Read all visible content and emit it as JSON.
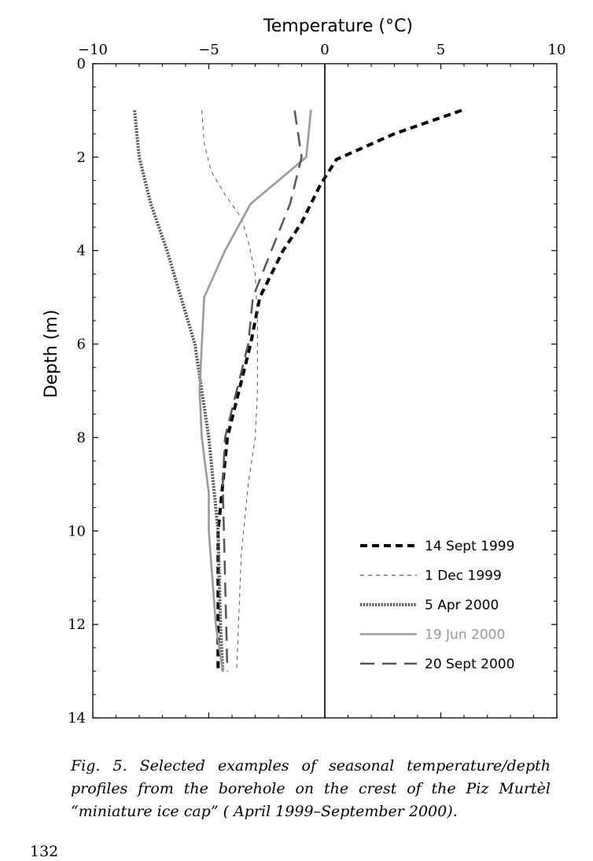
{
  "chart_data": {
    "type": "line",
    "xlabel": "Temperature (°C)",
    "ylabel": "Depth (m)",
    "xlim": [
      -10,
      10
    ],
    "ylim": [
      0,
      14
    ],
    "y_inverted": true,
    "x_axis_position": "top",
    "xticks": [
      "−10",
      "−5",
      "0",
      "5",
      "10"
    ],
    "yticks": [
      "0",
      "2",
      "4",
      "6",
      "8",
      "10",
      "12",
      "14"
    ],
    "zero_line": true,
    "grid": false,
    "legend_position": "bottom-right",
    "series": [
      {
        "name": "14 Sept 1999",
        "color": "#000000",
        "style": "heavy-dashed",
        "x": [
          5.9,
          3.0,
          0.5,
          -0.2,
          -0.6,
          -1.0,
          -1.8,
          -2.8,
          -3.2,
          -3.7,
          -4.2,
          -4.4,
          -4.6,
          -4.6
        ],
        "y": [
          1,
          1.5,
          2.05,
          2.6,
          3.0,
          3.4,
          4.0,
          5.0,
          6.0,
          7.0,
          8.0,
          9.0,
          10.0,
          13.0
        ]
      },
      {
        "name": "1 Dec 1999",
        "color": "#555555",
        "style": "thin-dashed",
        "x": [
          -5.3,
          -5.2,
          -4.9,
          -4.3,
          -3.6,
          -3.3,
          -3.0,
          -2.9,
          -2.9,
          -3.0,
          -3.3,
          -3.6,
          -3.8
        ],
        "y": [
          1,
          1.7,
          2.3,
          2.8,
          3.3,
          3.8,
          4.5,
          5.5,
          7.0,
          8.0,
          9.0,
          10.5,
          13.0
        ]
      },
      {
        "name": "5 Apr 2000",
        "color": "#555555",
        "style": "dotted",
        "x": [
          -8.2,
          -8.0,
          -7.5,
          -6.8,
          -6.2,
          -5.6,
          -5.3,
          -5.0,
          -4.8,
          -4.6,
          -4.5,
          -4.4
        ],
        "y": [
          1,
          2,
          3,
          4,
          5,
          6,
          7,
          8,
          9,
          10,
          12,
          13
        ]
      },
      {
        "name": "19 Jun 2000",
        "color": "#999999",
        "style": "solid",
        "x": [
          -0.6,
          -0.8,
          -2.0,
          -3.2,
          -4.3,
          -5.2,
          -5.4,
          -5.3,
          -5.0,
          -5.0,
          -4.7,
          -4.4
        ],
        "y": [
          1,
          2,
          2.5,
          3.0,
          4.0,
          5.0,
          7.0,
          8.0,
          9.2,
          10.0,
          12.0,
          13.0
        ]
      },
      {
        "name": "20 Sept 2000",
        "color": "#555555",
        "style": "long-dashed",
        "x": [
          -1.3,
          -1.0,
          -1.5,
          -2.3,
          -3.1,
          -3.3,
          -3.8,
          -4.3,
          -4.4,
          -4.2
        ],
        "y": [
          1,
          2,
          3,
          4,
          5,
          6,
          7,
          8,
          9,
          13
        ]
      }
    ]
  },
  "caption": "Fig. 5. Selected examples of seasonal temperature/depth profiles from the borehole on the crest of the Piz Murtèl “miniature ice cap” ( April 1999–September 2000).",
  "page_number": "132"
}
